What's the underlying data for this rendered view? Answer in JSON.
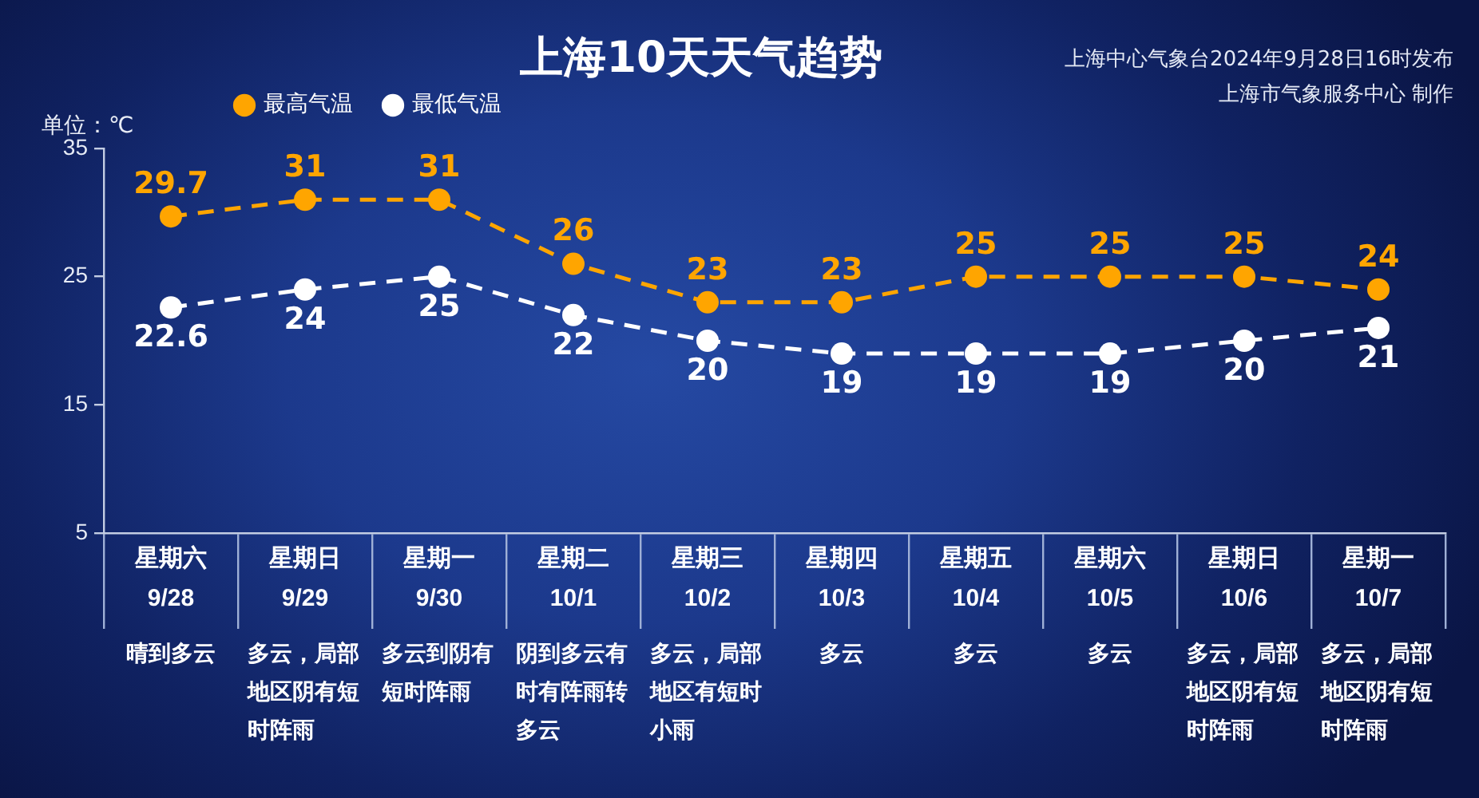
{
  "chart_data": {
    "type": "line",
    "title": "上海10天天气趋势",
    "ylabel": "单位：℃",
    "annotations": [
      "上海中心气象台2024年9月28日16时发布",
      "上海市气象服务中心 制作",
      "晴到多云",
      "多云，局部地区阴有短时阵雨",
      "多云到阴有短时阵雨",
      "阴到多云有时有阵雨转多云",
      "多云，局部地区有短时小雨",
      "多云",
      "多云",
      "多云",
      "多云，局部地区阴有短时阵雨",
      "多云，局部地区阴有短时阵雨"
    ],
    "categories": [
      "星期六\n9/28",
      "星期日\n9/29",
      "星期一\n9/30",
      "星期二\n10/1",
      "星期三\n10/2",
      "星期四\n10/3",
      "星期五\n10/4",
      "星期六\n10/5",
      "星期日\n10/6",
      "星期一\n10/7"
    ],
    "series": [
      {
        "name": "最高气温",
        "color": "#ffa500",
        "values": [
          29.7,
          31,
          31,
          26,
          23,
          23,
          25,
          25,
          25,
          24
        ]
      },
      {
        "name": "最低气温",
        "color": "#ffffff",
        "values": [
          22.6,
          24,
          25,
          22,
          20,
          19,
          19,
          19,
          20,
          21
        ]
      }
    ],
    "ylim": [
      5,
      35
    ],
    "yticks": [
      5,
      15,
      25,
      35
    ],
    "legend": "top left",
    "data_labels": true,
    "marker": "circle",
    "line_style": "dashed",
    "grid": false
  }
}
